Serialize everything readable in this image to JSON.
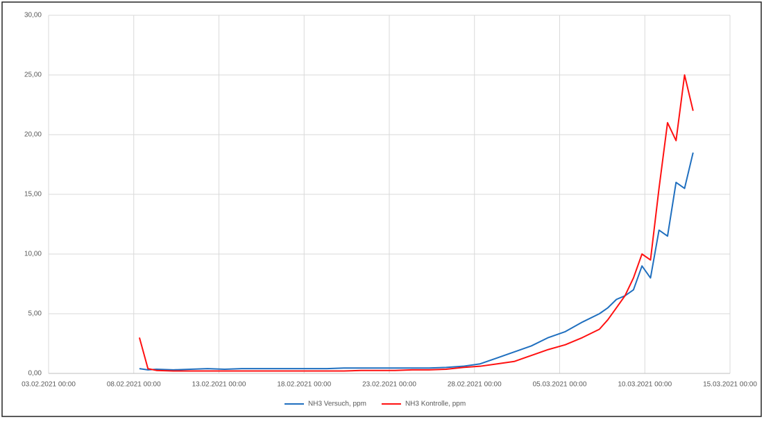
{
  "chart_data": {
    "type": "line",
    "x": [
      "08.02.2021 08:00",
      "08.02.2021 20:00",
      "09.02.2021 08:00",
      "10.02.2021 08:00",
      "11.02.2021 08:00",
      "12.02.2021 08:00",
      "13.02.2021 08:00",
      "14.02.2021 08:00",
      "15.02.2021 08:00",
      "16.02.2021 08:00",
      "17.02.2021 08:00",
      "18.02.2021 08:00",
      "19.02.2021 08:00",
      "20.02.2021 08:00",
      "21.02.2021 08:00",
      "22.02.2021 08:00",
      "23.02.2021 08:00",
      "24.02.2021 08:00",
      "25.02.2021 08:00",
      "26.02.2021 08:00",
      "27.02.2021 08:00",
      "28.02.2021 08:00",
      "01.03.2021 08:00",
      "02.03.2021 08:00",
      "03.03.2021 08:00",
      "04.03.2021 08:00",
      "05.03.2021 08:00",
      "06.03.2021 08:00",
      "07.03.2021 08:00",
      "07.03.2021 20:00",
      "08.03.2021 08:00",
      "08.03.2021 20:00",
      "09.03.2021 08:00",
      "09.03.2021 20:00",
      "10.03.2021 08:00",
      "10.03.2021 20:00",
      "11.03.2021 08:00",
      "11.03.2021 20:00",
      "12.03.2021 08:00",
      "12.03.2021 20:00"
    ],
    "series": [
      {
        "name": "NH3 Versuch, ppm",
        "color": "#1f6fbf",
        "values": [
          0.4,
          0.3,
          0.35,
          0.3,
          0.35,
          0.4,
          0.35,
          0.4,
          0.4,
          0.4,
          0.4,
          0.4,
          0.4,
          0.45,
          0.45,
          0.45,
          0.45,
          0.45,
          0.45,
          0.5,
          0.6,
          0.8,
          1.3,
          1.8,
          2.3,
          3.0,
          3.5,
          4.3,
          5.0,
          5.5,
          6.2,
          6.5,
          7.0,
          9.0,
          8.0,
          12.0,
          11.5,
          16.0,
          15.5,
          18.5
        ]
      },
      {
        "name": "NH3 Kontrolle, ppm",
        "color": "#ff1010",
        "values": [
          3.0,
          0.4,
          0.25,
          0.2,
          0.2,
          0.2,
          0.2,
          0.2,
          0.2,
          0.2,
          0.2,
          0.2,
          0.2,
          0.2,
          0.25,
          0.25,
          0.25,
          0.3,
          0.3,
          0.35,
          0.5,
          0.6,
          0.8,
          1.0,
          1.5,
          2.0,
          2.4,
          3.0,
          3.7,
          4.5,
          5.5,
          6.5,
          8.0,
          10.0,
          9.5,
          15.5,
          21.0,
          19.5,
          25.0,
          22.0
        ]
      }
    ],
    "xlim": [
      "03.02.2021 00:00",
      "15.03.2021 00:00"
    ],
    "xticks": [
      "03.02.2021 00:00",
      "08.02.2021 00:00",
      "13.02.2021 00:00",
      "18.02.2021 00:00",
      "23.02.2021 00:00",
      "28.02.2021 00:00",
      "05.03.2021 00:00",
      "10.03.2021 00:00",
      "15.03.2021 00:00"
    ],
    "ylim": [
      0,
      30
    ],
    "yticks": [
      {
        "value": 0,
        "label": "0,00"
      },
      {
        "value": 5,
        "label": "5,00"
      },
      {
        "value": 10,
        "label": "10,00"
      },
      {
        "value": 15,
        "label": "15,00"
      },
      {
        "value": 20,
        "label": "20,00"
      },
      {
        "value": 25,
        "label": "25,00"
      },
      {
        "value": 30,
        "label": "30,00"
      }
    ],
    "grid": true
  }
}
